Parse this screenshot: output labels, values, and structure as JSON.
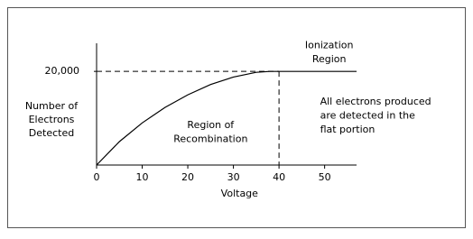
{
  "chart_data": {
    "type": "line",
    "y_label_lines": [
      "Number of",
      "Electrons",
      "Detected"
    ],
    "x_label": "Voltage",
    "x": [
      0,
      5,
      10,
      15,
      20,
      25,
      30,
      35,
      38,
      45,
      50,
      57
    ],
    "series": [
      {
        "color": "#000000",
        "values": [
          0,
          5000,
          9000,
          12300,
          15000,
          17200,
          18800,
          19800,
          20000,
          20000,
          20000,
          20000
        ]
      }
    ],
    "xlim": [
      0,
      57
    ],
    "ylim": [
      0,
      26000
    ],
    "xticks": [
      0,
      10,
      20,
      30,
      40,
      50
    ],
    "yticks": [
      {
        "value": 20000,
        "label": "20,000"
      }
    ],
    "reference_lines": {
      "y": 20000,
      "x": 40
    },
    "annotations": [
      {
        "lines": [
          "Ionization",
          "Region"
        ],
        "x": 51,
        "y": 25500
      },
      {
        "lines": [
          "Region of",
          "Recombination"
        ],
        "x": 25,
        "y": 8500
      },
      {
        "lines": [
          "All electrons produced",
          "are detected in the",
          "flat portion"
        ],
        "x": 49,
        "y": 13500
      }
    ]
  }
}
